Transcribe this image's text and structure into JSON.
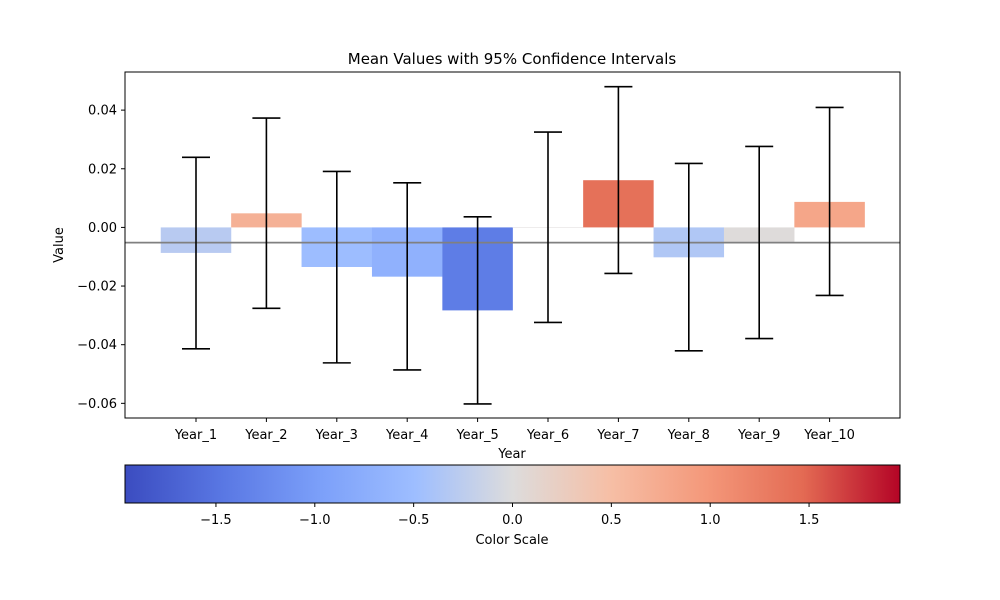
{
  "chart_data": {
    "type": "bar",
    "title": "Mean Values with 95% Confidence Intervals",
    "xlabel": "Year",
    "ylabel": "Value",
    "categories": [
      "Year_1",
      "Year_2",
      "Year_3",
      "Year_4",
      "Year_5",
      "Year_6",
      "Year_7",
      "Year_8",
      "Year_9",
      "Year_10"
    ],
    "values": [
      -0.0087,
      0.0048,
      -0.0135,
      -0.0168,
      -0.0283,
      0.0,
      0.0161,
      -0.0102,
      -0.0052,
      0.0087
    ],
    "ci_lower": [
      -0.0414,
      -0.0276,
      -0.0462,
      -0.0486,
      -0.0602,
      -0.0324,
      -0.0157,
      -0.0421,
      -0.0379,
      -0.0232
    ],
    "ci_upper": [
      0.0239,
      0.0373,
      0.0191,
      0.0152,
      0.0036,
      0.0325,
      0.048,
      0.0218,
      0.0276,
      0.0409
    ],
    "color_scores": [
      -0.29,
      0.67,
      -0.51,
      -0.69,
      -1.4,
      0.02,
      1.4,
      -0.35,
      0.02,
      0.81
    ],
    "reference_line": -0.0052,
    "ylim": [
      -0.065,
      0.053
    ],
    "yticks": [
      -0.06,
      -0.04,
      -0.02,
      0.0,
      0.02,
      0.04
    ],
    "ytick_labels": [
      "−0.06",
      "−0.04",
      "−0.02",
      "0.00",
      "0.02",
      "0.04"
    ],
    "grid": false,
    "colorbar": {
      "label": "Color Scale",
      "colormap": "coolwarm",
      "range": [
        -1.96,
        1.96
      ],
      "ticks": [
        -1.5,
        -1.0,
        -0.5,
        0.0,
        0.5,
        1.0,
        1.5
      ],
      "tick_labels": [
        "−1.5",
        "−1.0",
        "−0.5",
        "0.0",
        "0.5",
        "1.0",
        "1.5"
      ]
    }
  }
}
